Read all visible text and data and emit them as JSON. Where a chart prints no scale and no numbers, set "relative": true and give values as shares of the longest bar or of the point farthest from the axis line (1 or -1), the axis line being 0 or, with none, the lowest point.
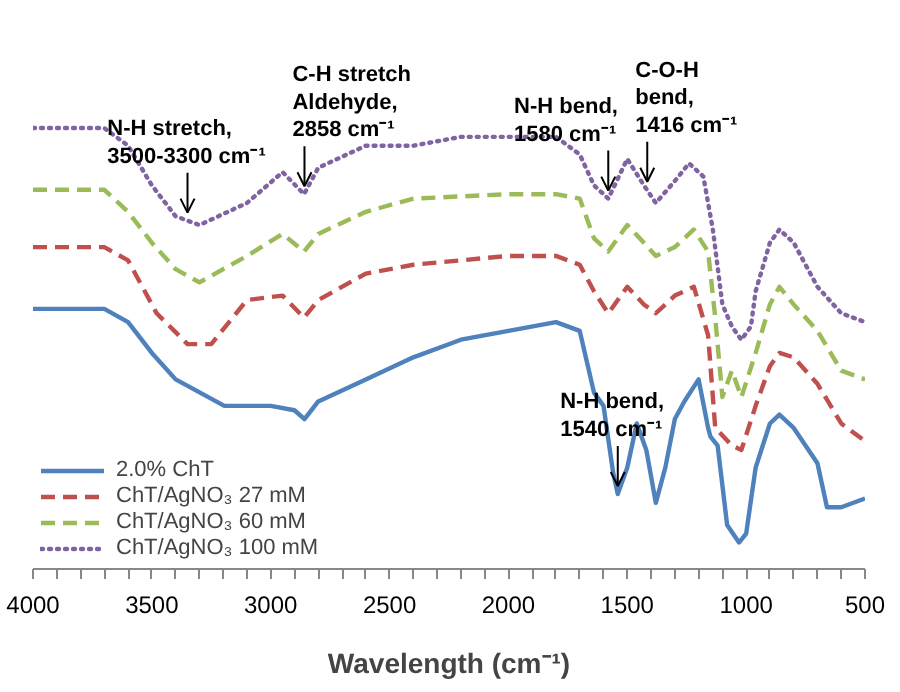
{
  "chart_data": {
    "type": "line",
    "relative": true,
    "xlabel": "Wavelength (cm⁻¹)",
    "xlim": [
      4000,
      500
    ],
    "xticks": [
      4000,
      {
        "value": 3900,
        "label": null
      },
      {
        "value": 3800,
        "label": null
      },
      {
        "value": 3700,
        "label": null
      },
      {
        "value": 3600,
        "label": null
      },
      3500,
      {
        "value": 3400,
        "label": null
      },
      {
        "value": 3300,
        "label": null
      },
      {
        "value": 3200,
        "label": null
      },
      {
        "value": 3100,
        "label": null
      },
      3000,
      {
        "value": 2900,
        "label": null
      },
      {
        "value": 2800,
        "label": null
      },
      {
        "value": 2700,
        "label": null
      },
      {
        "value": 2600,
        "label": null
      },
      2500,
      {
        "value": 2400,
        "label": null
      },
      {
        "value": 2300,
        "label": null
      },
      {
        "value": 2200,
        "label": null
      },
      {
        "value": 2100,
        "label": null
      },
      2000,
      {
        "value": 1900,
        "label": null
      },
      {
        "value": 1800,
        "label": null
      },
      {
        "value": 1700,
        "label": null
      },
      {
        "value": 1600,
        "label": null
      },
      1500,
      {
        "value": 1400,
        "label": null
      },
      {
        "value": 1300,
        "label": null
      },
      {
        "value": 1200,
        "label": null
      },
      {
        "value": 1100,
        "label": null
      },
      1000,
      {
        "value": 900,
        "label": null
      },
      {
        "value": 800,
        "label": null
      },
      {
        "value": 700,
        "label": null
      },
      {
        "value": 600,
        "label": null
      },
      500
    ],
    "grid": false,
    "legend": "bottom left",
    "marker": "none",
    "annotations": [
      {
        "text": "N-H stretch,\n3500-3300 cm⁻¹",
        "x": 3350,
        "y": 0.79
      },
      {
        "text": "C-H stretch\nAldehyde,\n2858 cm⁻¹",
        "x": 2858,
        "y": 0.85
      },
      {
        "text": "N-H bend,\n1580 cm⁻¹",
        "x": 1580,
        "y": 0.84
      },
      {
        "text": "C-O-H\nbend,\n1416 cm⁻¹",
        "x": 1416,
        "y": 0.86
      },
      {
        "text": "N-H bend,\n1540 cm⁻¹",
        "x": 1540,
        "y": 0.17
      }
    ],
    "series": [
      {
        "name": "2.0% ChT",
        "color": "#4f81bd",
        "line_style": "solid",
        "x": [
          4000,
          3700,
          3600,
          3500,
          3400,
          3195,
          3000,
          2900,
          2858,
          2800,
          2600,
          2400,
          2200,
          2000,
          1800,
          1700,
          1640,
          1600,
          1560,
          1540,
          1500,
          1460,
          1420,
          1380,
          1340,
          1300,
          1260,
          1200,
          1160,
          1150,
          1120,
          1080,
          1030,
          1000,
          960,
          900,
          860,
          800,
          700,
          660,
          600,
          500
        ],
        "values": [
          0.59,
          0.59,
          0.56,
          0.49,
          0.43,
          0.37,
          0.37,
          0.36,
          0.34,
          0.38,
          0.43,
          0.48,
          0.52,
          0.54,
          0.56,
          0.54,
          0.4,
          0.37,
          0.22,
          0.17,
          0.23,
          0.33,
          0.27,
          0.15,
          0.23,
          0.34,
          0.38,
          0.43,
          0.32,
          0.3,
          0.28,
          0.1,
          0.06,
          0.08,
          0.23,
          0.33,
          0.35,
          0.32,
          0.24,
          0.14,
          0.14,
          0.16
        ]
      },
      {
        "name": "ChT/AgNO₃ 27 mM",
        "color": "#c0504d",
        "line_style": "dashed",
        "x": [
          4000,
          3700,
          3600,
          3480,
          3350,
          3250,
          3100,
          2950,
          2860,
          2800,
          2600,
          2400,
          2000,
          1800,
          1700,
          1640,
          1580,
          1500,
          1430,
          1380,
          1300,
          1220,
          1160,
          1130,
          1060,
          1020,
          960,
          900,
          860,
          800,
          700,
          600,
          500
        ],
        "values": [
          0.73,
          0.73,
          0.7,
          0.58,
          0.51,
          0.51,
          0.61,
          0.62,
          0.57,
          0.61,
          0.67,
          0.69,
          0.71,
          0.71,
          0.69,
          0.63,
          0.58,
          0.64,
          0.6,
          0.58,
          0.62,
          0.64,
          0.53,
          0.32,
          0.28,
          0.27,
          0.37,
          0.46,
          0.49,
          0.48,
          0.42,
          0.33,
          0.29
        ]
      },
      {
        "name": "ChT/AgNO₃ 60 mM",
        "color": "#9bbb59",
        "line_style": "dashed",
        "x": [
          4000,
          3700,
          3600,
          3500,
          3400,
          3300,
          3100,
          2950,
          2860,
          2800,
          2600,
          2400,
          2000,
          1800,
          1700,
          1640,
          1580,
          1500,
          1430,
          1380,
          1300,
          1220,
          1160,
          1130,
          1100,
          1060,
          1020,
          960,
          900,
          860,
          800,
          700,
          600,
          500
        ],
        "values": [
          0.86,
          0.86,
          0.81,
          0.74,
          0.68,
          0.65,
          0.71,
          0.76,
          0.72,
          0.76,
          0.81,
          0.84,
          0.85,
          0.85,
          0.84,
          0.75,
          0.72,
          0.78,
          0.74,
          0.71,
          0.73,
          0.77,
          0.72,
          0.57,
          0.39,
          0.45,
          0.39,
          0.49,
          0.6,
          0.64,
          0.6,
          0.54,
          0.45,
          0.43
        ]
      },
      {
        "name": "ChT/AgNO₃ 100 mM",
        "color": "#8064a2",
        "line_style": "dotted",
        "x": [
          4000,
          3700,
          3600,
          3500,
          3400,
          3300,
          3100,
          2950,
          2860,
          2800,
          2600,
          2400,
          2200,
          2000,
          1800,
          1700,
          1640,
          1580,
          1500,
          1430,
          1380,
          1300,
          1240,
          1180,
          1140,
          1100,
          1060,
          1020,
          980,
          960,
          900,
          860,
          800,
          700,
          600,
          500
        ],
        "values": [
          1.0,
          1.0,
          0.96,
          0.87,
          0.8,
          0.78,
          0.83,
          0.9,
          0.85,
          0.91,
          0.96,
          0.96,
          0.98,
          0.98,
          0.98,
          0.94,
          0.87,
          0.84,
          0.93,
          0.87,
          0.83,
          0.88,
          0.92,
          0.89,
          0.77,
          0.6,
          0.55,
          0.52,
          0.55,
          0.63,
          0.74,
          0.77,
          0.74,
          0.64,
          0.58,
          0.56
        ]
      }
    ]
  }
}
